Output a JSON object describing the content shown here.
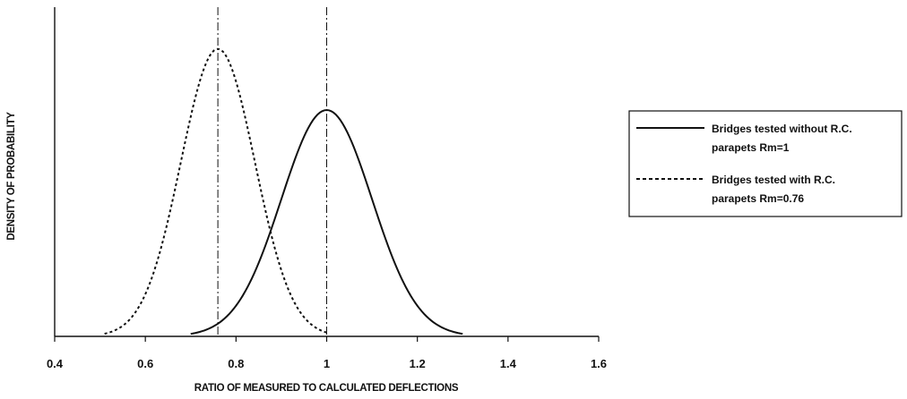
{
  "chart_data": {
    "type": "line",
    "xlabel": "RATIO OF MEASURED TO CALCULATED DEFLECTIONS",
    "ylabel": "DENSITY OF PROBABILITY",
    "xlim": [
      0.4,
      1.6
    ],
    "x_ticks": [
      "0.4",
      "0.6",
      "0.8",
      "1",
      "1.2",
      "1.4",
      "1.6"
    ],
    "y_ticks": [],
    "grid": false,
    "legend_position": "right",
    "series": [
      {
        "name": "Bridges tested without R.C. parapets Rm=1",
        "legend_lines": [
          "Bridges tested without R.C.",
          "parapets Rm=1"
        ],
        "style": "solid",
        "mean": 1.0,
        "range": [
          0.7,
          1.3
        ],
        "relative_peak": 1.0,
        "x": [
          0.7,
          0.75,
          0.8,
          0.85,
          0.9,
          0.95,
          1.0,
          1.05,
          1.1,
          1.15,
          1.2,
          1.25,
          1.3
        ],
        "y": [
          0.03,
          0.09,
          0.19,
          0.36,
          0.62,
          0.88,
          1.0,
          0.88,
          0.62,
          0.36,
          0.19,
          0.09,
          0.03
        ]
      },
      {
        "name": "Bridges tested with R.C. parapets Rm=0.76",
        "legend_lines": [
          "Bridges tested with R.C.",
          "parapets Rm=0.76"
        ],
        "style": "dashed",
        "mean": 0.76,
        "range": [
          0.51,
          1.0
        ],
        "relative_peak": 1.27,
        "x": [
          0.51,
          0.56,
          0.61,
          0.66,
          0.71,
          0.76,
          0.81,
          0.86,
          0.91,
          0.96,
          1.0
        ],
        "y": [
          0.04,
          0.14,
          0.35,
          0.7,
          1.08,
          1.27,
          1.08,
          0.7,
          0.35,
          0.14,
          0.04
        ]
      }
    ],
    "reference_lines": [
      {
        "x": 0.76,
        "style": "dash-dot"
      },
      {
        "x": 1.0,
        "style": "dash-dot"
      }
    ]
  }
}
